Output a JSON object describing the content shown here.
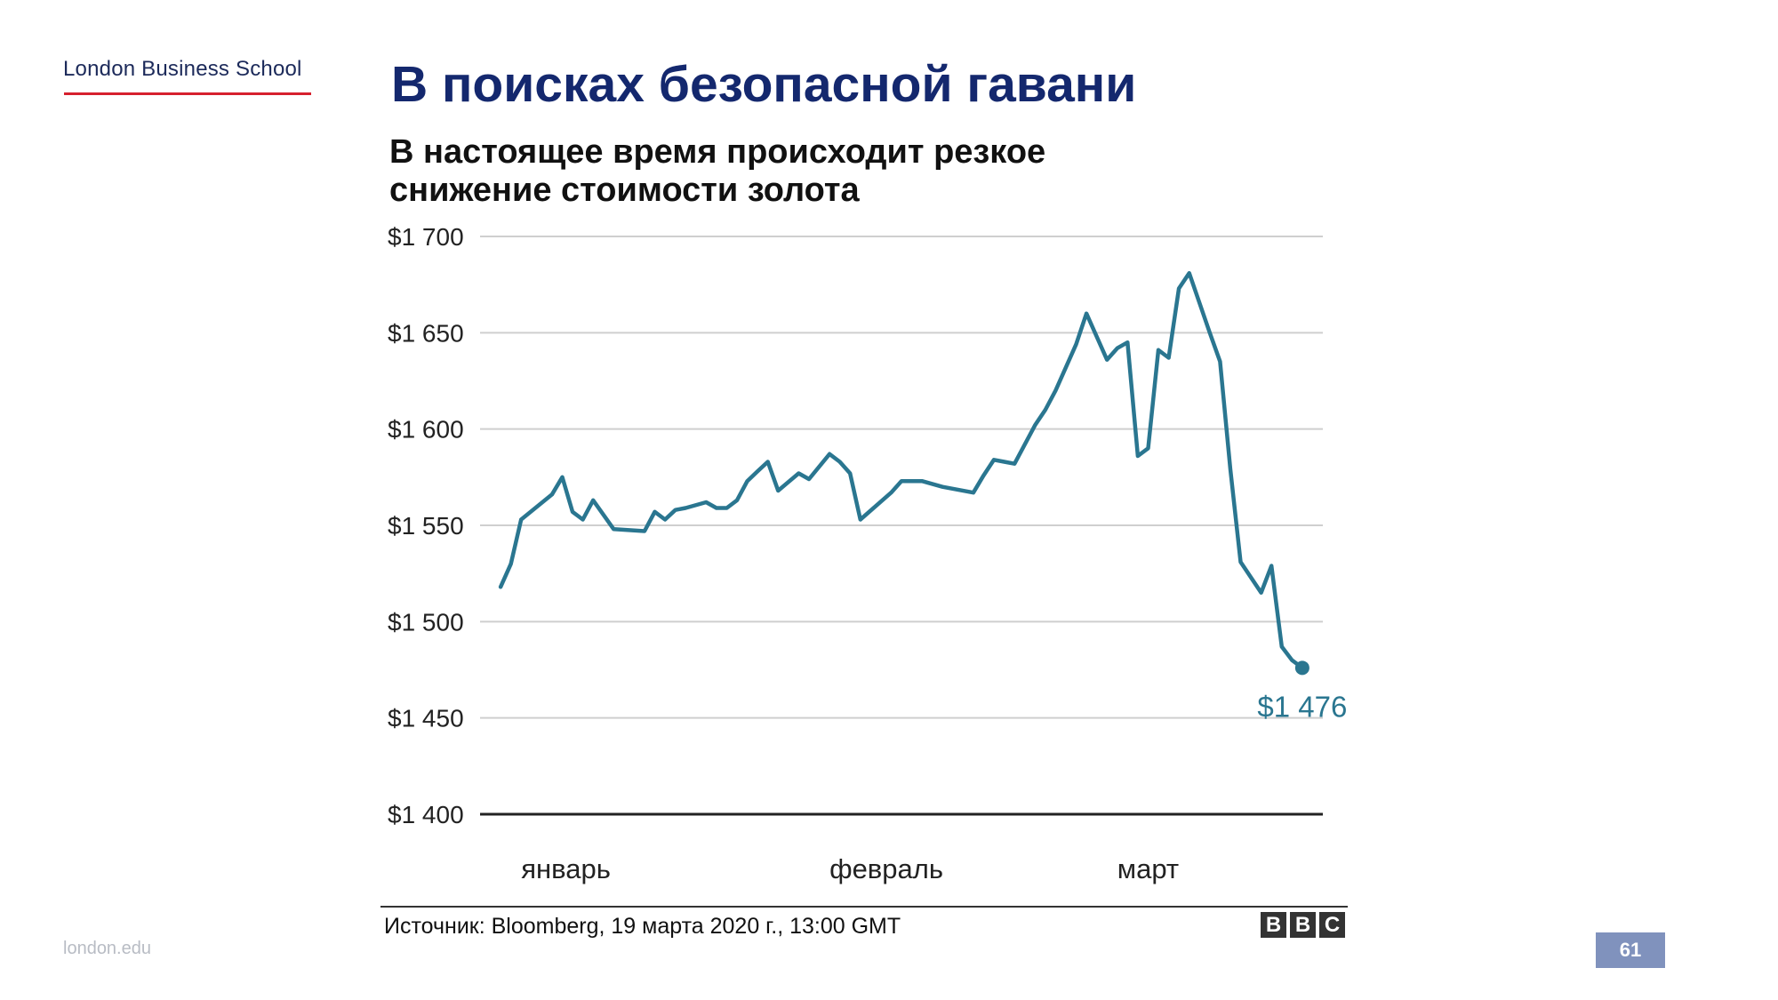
{
  "header": {
    "logo_text": "London Business School",
    "slide_title": "В поисках безопасной гавани"
  },
  "footer": {
    "url": "london.edu",
    "page_number": "61",
    "source": "Источник: Bloomberg, 19 марта 2020 г., 13:00 GMT",
    "brand_letters": [
      "B",
      "B",
      "C"
    ]
  },
  "colors": {
    "line": "#2a7690",
    "grid": "#cfcfcf",
    "baseline": "#222222",
    "title": "#14286e",
    "logo_underline": "#d6202e"
  },
  "chart_data": {
    "type": "line",
    "title": "В настоящее время происходит резкое снижение стоимости золота",
    "xlabel": "",
    "ylabel": "",
    "ylim": [
      1400,
      1700
    ],
    "y_ticks": [
      1400,
      1450,
      1500,
      1550,
      1600,
      1650,
      1700
    ],
    "y_tick_labels": [
      "$1 400",
      "$1 450",
      "$1 500",
      "$1 550",
      "$1 600",
      "$1 650",
      "$1 700"
    ],
    "x_tick_labels": [
      "январь",
      "февраль",
      "март"
    ],
    "x_tick_positions": [
      "2020-01-04",
      "2020-02-03",
      "2020-03-02"
    ],
    "xlim": [
      "2019-12-31",
      "2020-03-22"
    ],
    "end_label": "$1 476",
    "grid": true,
    "series": [
      {
        "x": [
          "2020-01-02",
          "2020-01-03",
          "2020-01-04",
          "2020-01-07",
          "2020-01-08",
          "2020-01-09",
          "2020-01-10",
          "2020-01-11",
          "2020-01-13",
          "2020-01-16",
          "2020-01-17",
          "2020-01-18",
          "2020-01-19",
          "2020-01-20",
          "2020-01-22",
          "2020-01-23",
          "2020-01-24",
          "2020-01-25",
          "2020-01-26",
          "2020-01-27",
          "2020-01-28",
          "2020-01-29",
          "2020-01-31",
          "2020-02-01",
          "2020-02-03",
          "2020-02-04",
          "2020-02-05",
          "2020-02-06",
          "2020-02-09",
          "2020-02-10",
          "2020-02-11",
          "2020-02-12",
          "2020-02-14",
          "2020-02-17",
          "2020-02-18",
          "2020-02-19",
          "2020-02-20",
          "2020-02-21",
          "2020-02-23",
          "2020-02-24",
          "2020-02-25",
          "2020-02-27",
          "2020-02-28",
          "2020-03-01",
          "2020-03-02",
          "2020-03-03",
          "2020-03-04",
          "2020-03-05",
          "2020-03-06",
          "2020-03-07",
          "2020-03-08",
          "2020-03-09",
          "2020-03-11",
          "2020-03-12",
          "2020-03-13",
          "2020-03-14",
          "2020-03-16",
          "2020-03-17",
          "2020-03-18",
          "2020-03-19",
          "2020-03-20"
        ],
        "y": [
          1518,
          1530,
          1553,
          1566,
          1575,
          1557,
          1553,
          1563,
          1548,
          1547,
          1557,
          1553,
          1558,
          1559,
          1562,
          1559,
          1559,
          1563,
          1573,
          1578,
          1583,
          1568,
          1577,
          1574,
          1587,
          1583,
          1577,
          1553,
          1567,
          1573,
          1573,
          1573,
          1570,
          1567,
          1576,
          1584,
          1583,
          1582,
          1602,
          1610,
          1620,
          1644,
          1660,
          1636,
          1642,
          1645,
          1586,
          1590,
          1641,
          1637,
          1673,
          1681,
          1650,
          1635,
          1579,
          1531,
          1515,
          1529,
          1487,
          1480,
          1476
        ]
      }
    ]
  }
}
